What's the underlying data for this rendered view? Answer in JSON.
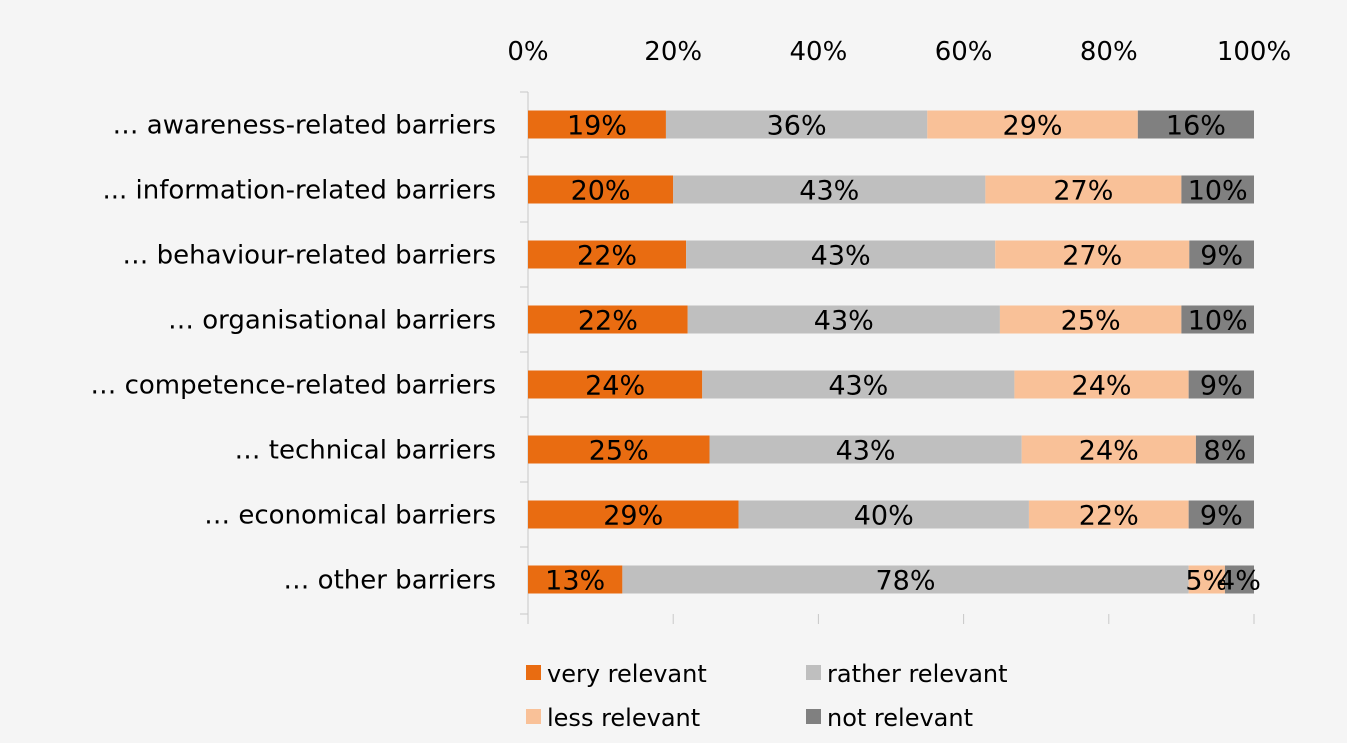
{
  "chart_data": {
    "type": "bar",
    "orientation": "horizontal",
    "stacked": "percent",
    "categories": [
      "… awareness-related barriers",
      "... information-related barriers",
      "… behaviour-related barriers",
      "… organisational barriers",
      "… competence-related barriers",
      "… technical barriers",
      "… economical barriers",
      "… other barriers"
    ],
    "series": [
      {
        "name": "very relevant",
        "color": "#e96c11",
        "values": [
          19,
          20,
          22,
          22,
          24,
          25,
          29,
          13
        ]
      },
      {
        "name": "rather relevant",
        "color": "#bfbfbf",
        "values": [
          36,
          43,
          43,
          43,
          43,
          43,
          40,
          78
        ]
      },
      {
        "name": "less relevant",
        "color": "#f9c198",
        "values": [
          29,
          27,
          27,
          25,
          24,
          24,
          22,
          5
        ]
      },
      {
        "name": "not relevant",
        "color": "#808080",
        "values": [
          16,
          10,
          9,
          10,
          9,
          8,
          9,
          4
        ]
      }
    ],
    "axis": {
      "ticks": [
        "0%",
        "20%",
        "40%",
        "60%",
        "80%",
        "100%"
      ],
      "range": [
        0,
        100
      ],
      "position": "top"
    },
    "title": "",
    "xlabel": "",
    "ylabel": "",
    "grid": false,
    "legend_position": "bottom"
  }
}
